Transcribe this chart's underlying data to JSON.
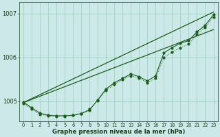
{
  "background_color": "#cce8e8",
  "grid_color": "#99ccbb",
  "line_color": "#1a5c1a",
  "xlim": [
    -0.5,
    23.5
  ],
  "ylim": [
    1004.55,
    1007.25
  ],
  "yticks": [
    1005,
    1006,
    1007
  ],
  "xticks": [
    0,
    1,
    2,
    3,
    4,
    5,
    6,
    7,
    8,
    9,
    10,
    11,
    12,
    13,
    14,
    15,
    16,
    17,
    18,
    19,
    20,
    21,
    22,
    23
  ],
  "xlabel": "Graphe pression niveau de la mer (hPa)",
  "line_dotted": [
    1004.95,
    1004.82,
    1004.7,
    1004.67,
    1004.66,
    1004.66,
    1004.68,
    1004.72,
    1004.82,
    1005.02,
    1005.25,
    1005.38,
    1005.5,
    1005.58,
    1005.53,
    1005.42,
    1005.52,
    1006.0,
    1006.12,
    1006.22,
    1006.3,
    1006.52,
    1006.68,
    1006.92
  ],
  "line_solid_markers": [
    1004.98,
    1004.85,
    1004.73,
    1004.68,
    1004.67,
    1004.67,
    1004.68,
    1004.72,
    1004.8,
    1005.03,
    1005.28,
    1005.42,
    1005.52,
    1005.62,
    1005.56,
    1005.46,
    1005.58,
    1006.1,
    1006.22,
    1006.32,
    1006.38,
    1006.58,
    1006.73,
    1006.97
  ],
  "line_straight1": [
    [
      0,
      23
    ],
    [
      1004.97,
      1007.03
    ]
  ],
  "line_straight2": [
    [
      0,
      23
    ],
    [
      1004.97,
      1006.63
    ]
  ]
}
